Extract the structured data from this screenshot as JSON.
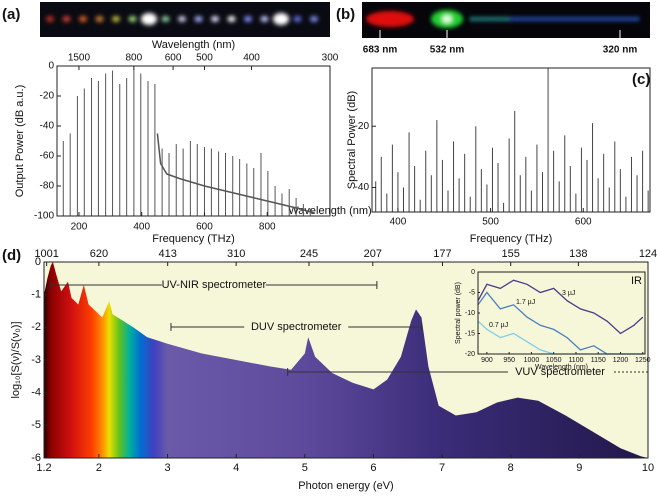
{
  "chart_data": [
    {
      "type": "photo",
      "label": "(a)"
    },
    {
      "type": "photo",
      "label": "(b)",
      "annotations": [
        "683 nm",
        "532 nm",
        "320 nm"
      ],
      "axis_label": "Wavelength (nm)"
    },
    {
      "type": "stem",
      "color": "#555555",
      "xlabel": "Frequency (THz)",
      "ylabel": "Output Power (dB a.u.)",
      "x2label": "Wavelength (nm)",
      "xlim": [
        130,
        1000
      ],
      "xticks": [
        200,
        400,
        600,
        800
      ],
      "ylim": [
        -100,
        0
      ],
      "yticks": [
        0,
        -20,
        -40,
        -60,
        -80,
        -100
      ],
      "x2lim": [
        2306,
        300
      ],
      "x2scale": "reciprocal",
      "x2ticks": [
        1500,
        800,
        600,
        500,
        400,
        300
      ],
      "x": [
        150,
        172,
        195,
        217,
        240,
        262,
        285,
        307,
        330,
        352,
        375,
        397,
        420,
        442,
        465,
        487,
        510,
        532,
        555,
        577,
        600,
        622,
        645,
        667,
        690,
        712,
        735,
        757,
        780,
        802,
        825,
        847,
        870,
        892,
        915,
        937
      ],
      "values": [
        -50,
        -45,
        -20,
        -15,
        -8,
        -10,
        -5,
        -3,
        -12,
        -8,
        -2,
        -5,
        -10,
        -12,
        -55,
        -58,
        -52,
        -55,
        -50,
        -52,
        -54,
        -55,
        -57,
        -58,
        -60,
        -62,
        -65,
        -68,
        -58,
        -70,
        -80,
        -85,
        -82,
        -88,
        -92,
        -95
      ],
      "floor": {
        "x": [
          450,
          460,
          480,
          520,
          600,
          700,
          800,
          900,
          950
        ],
        "values": [
          -45,
          -65,
          -72,
          -75,
          -80,
          -85,
          -90,
          -95,
          -98
        ]
      }
    },
    {
      "type": "stem",
      "label": "(c)",
      "color": "#444444",
      "xlabel": "Frequency (THz)",
      "ylabel": "Spectral Power (dB)",
      "xlim": [
        372,
        672
      ],
      "xticks": [
        400,
        500,
        600
      ],
      "ylim": [
        -48,
        -1
      ],
      "yticks": [
        -20,
        -40
      ],
      "x": [
        376,
        382,
        388,
        394,
        400,
        406,
        412,
        418,
        424,
        430,
        436,
        442,
        448,
        454,
        460,
        466,
        472,
        478,
        484,
        490,
        496,
        502,
        508,
        514,
        520,
        526,
        532,
        538,
        544,
        550,
        556,
        562,
        568,
        574,
        580,
        586,
        592,
        598,
        604,
        610,
        616,
        622,
        628,
        634,
        640,
        646,
        652,
        658,
        664,
        670
      ],
      "values": [
        -38,
        -30,
        -42,
        -26,
        -35,
        -40,
        -22,
        -33,
        -44,
        -28,
        -36,
        -18,
        -31,
        -41,
        -25,
        -37,
        -29,
        -43,
        -20,
        -34,
        -39,
        -27,
        -32,
        -45,
        -24,
        -15,
        -36,
        -30,
        -41,
        -26,
        -35,
        -1,
        -28,
        -38,
        -23,
        -33,
        -42,
        -27,
        -31,
        -19,
        -37,
        -29,
        -40,
        -25,
        -34,
        -43,
        -30,
        -36,
        -28,
        -41
      ]
    },
    {
      "type": "area",
      "label": "(d)",
      "background": "#f6f6d9",
      "xlabel": "Photon energy (eV)",
      "ylabel": "log₁₀[S(ν)/S(ν₀)]",
      "xlim": [
        1.2,
        10
      ],
      "xticks": [
        1.2,
        2,
        3,
        4,
        5,
        6,
        7,
        8,
        9,
        10
      ],
      "ylim": [
        -6,
        0
      ],
      "yticks": [
        0,
        -1,
        -2,
        -3,
        -4,
        -5,
        -6
      ],
      "x2lim": [
        1033,
        124
      ],
      "x2scale": "reciprocal",
      "x2ticks": [
        1001,
        620,
        413,
        310,
        245,
        207,
        177,
        155,
        138,
        124
      ],
      "x": [
        1.2,
        1.25,
        1.3,
        1.33,
        1.38,
        1.45,
        1.55,
        1.6,
        1.7,
        1.78,
        1.85,
        1.95,
        2.05,
        2.15,
        2.2,
        2.35,
        2.5,
        2.7,
        3.0,
        3.5,
        4.0,
        4.5,
        4.8,
        5.0,
        5.05,
        5.15,
        5.4,
        5.7,
        6.0,
        6.2,
        6.4,
        6.55,
        6.62,
        6.7,
        6.8,
        6.95,
        7.2,
        7.5,
        7.8,
        8.1,
        8.4,
        8.8,
        9.2,
        9.6,
        9.9,
        10
      ],
      "values": [
        -1.0,
        -0.5,
        -0.1,
        0,
        -0.4,
        -0.9,
        -0.6,
        -1.1,
        -1.3,
        -0.7,
        -1.3,
        -1.5,
        -1.7,
        -1.2,
        -1.6,
        -1.8,
        -2.0,
        -2.3,
        -2.5,
        -2.8,
        -3.0,
        -3.2,
        -3.3,
        -2.8,
        -2.3,
        -2.9,
        -3.4,
        -3.7,
        -3.9,
        -3.6,
        -2.9,
        -1.8,
        -1.45,
        -1.7,
        -3.2,
        -4.4,
        -4.7,
        -4.6,
        -4.3,
        -4.15,
        -4.25,
        -4.7,
        -5.2,
        -5.7,
        -5.95,
        -6
      ],
      "annotations": [
        {
          "text": "UV-NIR spectrometer",
          "range": [
            1.3,
            6.05
          ]
        },
        {
          "text": "DUV spectrometer",
          "range": [
            3.05,
            6.7
          ]
        },
        {
          "text": "VUV spectrometer",
          "range": [
            4.75,
            10
          ]
        }
      ]
    },
    {
      "type": "line",
      "label": "IR",
      "background": "#f6f6d9",
      "xlabel": "Wavelength (nm)",
      "ylabel": "Spectral power (dB)",
      "xlim": [
        880,
        1255
      ],
      "xticks": [
        900,
        950,
        1000,
        1050,
        1100,
        1150,
        1200,
        1250
      ],
      "ylim": [
        -20,
        0
      ],
      "yticks": [
        0,
        -5,
        -10,
        -15,
        -20
      ],
      "x": [
        880,
        900,
        930,
        960,
        990,
        1020,
        1050,
        1080,
        1110,
        1140,
        1170,
        1200,
        1230,
        1250
      ],
      "series": [
        {
          "name": "3 µJ",
          "color": "#4b3a8c",
          "values": [
            -7,
            -3,
            -4,
            -2,
            -3,
            -5,
            -4,
            -7,
            -9,
            -10,
            -12,
            -15,
            -13,
            -11
          ]
        },
        {
          "name": "1.7 µJ",
          "color": "#4a7fc0",
          "values": [
            -8,
            -5,
            -9,
            -8,
            -11,
            -13,
            -14,
            -16,
            -19,
            -18,
            -20,
            -20,
            -20,
            -20
          ]
        },
        {
          "name": "0.7 µJ",
          "color": "#7fcde8",
          "values": [
            -12,
            -14,
            -16,
            -15,
            -17,
            -19,
            -20,
            -20,
            -20,
            -20,
            -20,
            -20,
            -20,
            -20
          ]
        }
      ]
    }
  ]
}
